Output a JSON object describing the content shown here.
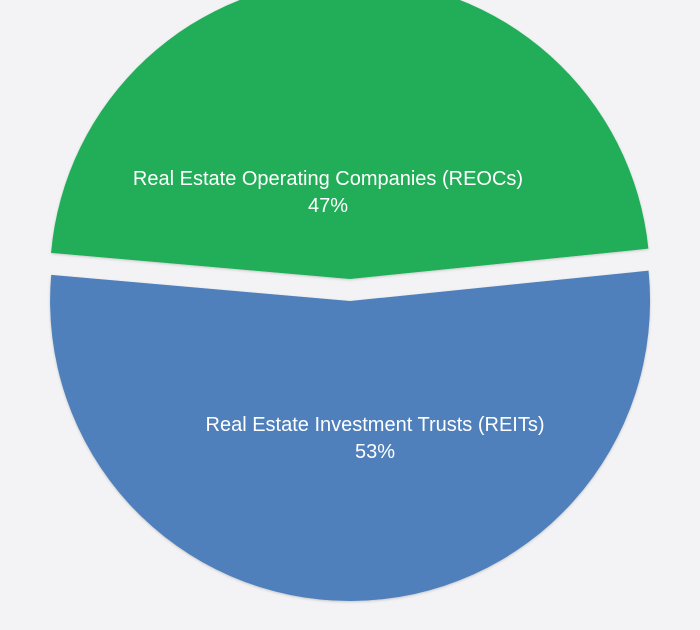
{
  "chart_data": {
    "type": "pie",
    "title": "",
    "categories": [
      "Real Estate Operating Companies (REOCs)",
      "Real Estate Investment Trusts (REITs)"
    ],
    "values": [
      47,
      53
    ],
    "value_labels": [
      "47%",
      "53%"
    ],
    "colors": [
      "#20ad58",
      "#4f80bb"
    ],
    "exploded": true,
    "legend": "none"
  }
}
